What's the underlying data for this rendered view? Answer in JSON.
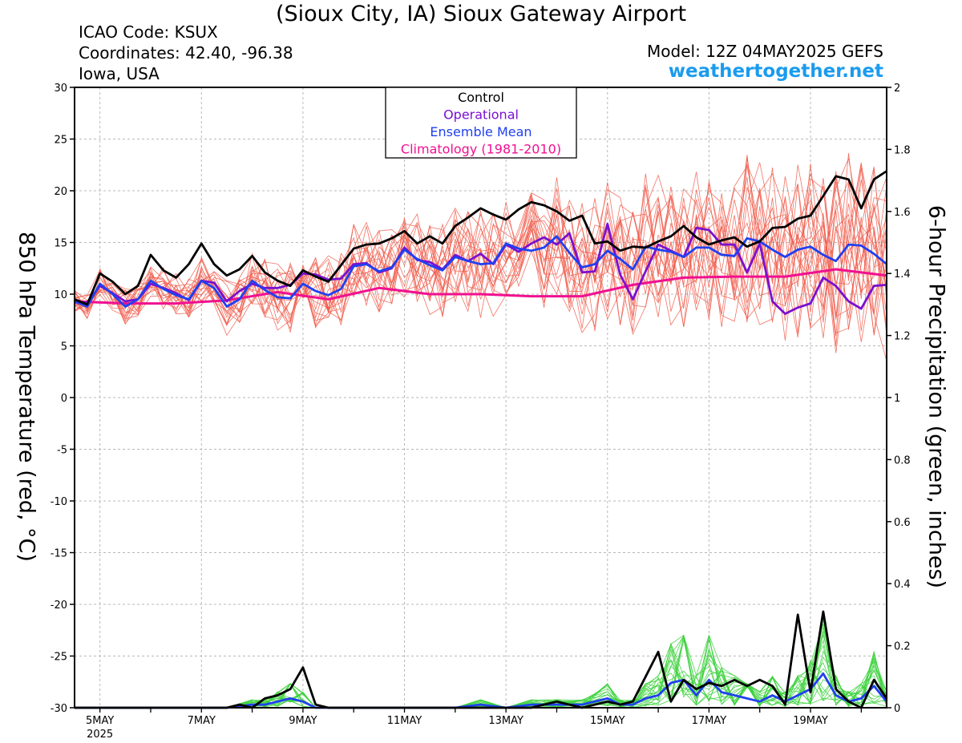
{
  "header": {
    "title": "(Sioux City, IA) Sioux Gateway Airport",
    "icao": "ICAO Code: KSUX",
    "coordinates": "Coordinates: 42.40, -96.38",
    "region": "Iowa, USA",
    "model": "Model: 12Z 04MAY2025 GEFS",
    "site": "weathertogether.net"
  },
  "colors": {
    "control": "#000000",
    "operational": "#7a10d0",
    "ensemble_mean": "#2040f0",
    "climatology": "#f01090",
    "members_temp": "#f05a4a",
    "members_precip": "#3cd23c",
    "site": "#1a9bef"
  },
  "chart_data": {
    "type": "line",
    "ylabel": "850 hPa Temperature (red, °C)",
    "y2label": "6-hour Precipitation (green, inches)",
    "ylim": [
      -30,
      30
    ],
    "y2lim": [
      0,
      2
    ],
    "yticks": [
      "30",
      "25",
      "20",
      "15",
      "10",
      "5",
      "0",
      "-5",
      "-10",
      "-15",
      "-20",
      "-25",
      "-30"
    ],
    "y2ticks": [
      "2",
      "1.8",
      "1.6",
      "1.4",
      "1.2",
      "1",
      "0.8",
      "0.6",
      "0.4",
      "0.2",
      "0"
    ],
    "xticks": [
      {
        "label": "5MAY",
        "sub": "2025",
        "x": 0.5
      },
      {
        "label": "7MAY",
        "sub": "",
        "x": 2.5
      },
      {
        "label": "9MAY",
        "sub": "",
        "x": 4.5
      },
      {
        "label": "11MAY",
        "sub": "",
        "x": 6.5
      },
      {
        "label": "13MAY",
        "sub": "",
        "x": 8.5
      },
      {
        "label": "15MAY",
        "sub": "",
        "x": 10.5
      },
      {
        "label": "17MAY",
        "sub": "",
        "x": 12.5
      },
      {
        "label": "19MAY",
        "sub": "",
        "x": 14.5
      }
    ],
    "x_unit": "days since 12Z 04MAY2025",
    "x_range": [
      0,
      16
    ],
    "grid": true,
    "legend": {
      "placement": "top-center",
      "entries": [
        "Control",
        "Operational",
        "Ensemble Mean",
        "Climatology (1981-2010)"
      ]
    },
    "series": [
      {
        "name": "Control",
        "axis": "temp",
        "x": [
          0,
          0.25,
          0.5,
          0.75,
          1,
          1.25,
          1.5,
          1.75,
          2,
          2.25,
          2.5,
          2.75,
          3,
          3.25,
          3.5,
          3.75,
          4,
          4.25,
          4.5,
          4.75,
          5,
          5.25,
          5.5,
          5.75,
          6,
          6.25,
          6.5,
          6.75,
          7,
          7.25,
          7.5,
          7.75,
          8,
          8.25,
          8.5,
          8.75,
          9,
          9.25,
          9.5,
          9.75,
          10,
          10.25,
          10.5,
          10.75,
          11,
          11.25,
          11.5,
          11.75,
          12,
          12.25,
          12.5,
          12.75,
          13,
          13.25,
          13.5,
          13.75,
          14,
          14.25,
          14.5,
          14.75,
          15,
          15.25,
          15.5,
          15.75,
          16
        ],
        "values": [
          9.5,
          9,
          12,
          11.2,
          10,
          10.8,
          13.8,
          12.3,
          11.6,
          12.9,
          14.9,
          12.9,
          11.8,
          12.4,
          13.7,
          12.1,
          11.3,
          10.8,
          12.3,
          11.7,
          11.2,
          12.8,
          14.4,
          14.8,
          14.9,
          15.4,
          16.1,
          14.9,
          15.6,
          14.9,
          16.6,
          17.4,
          18.3,
          17.7,
          17.2,
          18.2,
          18.9,
          18.6,
          18,
          17.1,
          17.6,
          14.9,
          15.1,
          14.2,
          14.6,
          14.5,
          15.1,
          15.6,
          16.6,
          15.5,
          14.8,
          15.2,
          15.5,
          14.6,
          15.1,
          16.4,
          16.5,
          17.3,
          17.6,
          19.5,
          21.4,
          21.1,
          18.3,
          21.1,
          21.9
        ]
      },
      {
        "name": "Operational",
        "axis": "temp",
        "x": [
          0,
          0.25,
          0.5,
          0.75,
          1,
          1.25,
          1.5,
          1.75,
          2,
          2.25,
          2.5,
          2.75,
          3,
          3.25,
          3.5,
          3.75,
          4,
          4.25,
          4.5,
          4.75,
          5,
          5.25,
          5.5,
          5.75,
          6,
          6.25,
          6.5,
          6.75,
          7,
          7.25,
          7.5,
          7.75,
          8,
          8.25,
          8.5,
          8.75,
          9,
          9.25,
          9.5,
          9.75,
          10,
          10.25,
          10.5,
          10.75,
          11,
          11.25,
          11.5,
          11.75,
          12,
          12.25,
          12.5,
          12.75,
          13,
          13.25,
          13.5,
          13.75,
          14,
          14.25,
          14.5,
          14.75,
          15,
          15.25,
          15.5,
          15.75,
          16
        ],
        "values": [
          9.2,
          9.2,
          10.8,
          10.1,
          9.3,
          9.5,
          11,
          10.6,
          10.1,
          9.4,
          11.3,
          11.1,
          9.3,
          10.3,
          11,
          10.6,
          10.6,
          10.9,
          12,
          11.9,
          11.4,
          11.5,
          12.9,
          13,
          12.1,
          12.5,
          14.5,
          13.3,
          13.1,
          12.4,
          13.8,
          13.2,
          13.9,
          12.9,
          14.8,
          14.1,
          14.9,
          15.5,
          14.8,
          15.9,
          12.1,
          12.2,
          16.8,
          11.9,
          9.5,
          12.2,
          14.8,
          14.2,
          13.6,
          16.4,
          16.2,
          14.8,
          14.8,
          12.1,
          14.9,
          9.3,
          8.1,
          8.7,
          9.1,
          11.6,
          10.8,
          9.3,
          8.6,
          10.8,
          10.9
        ]
      },
      {
        "name": "Ensemble Mean",
        "axis": "temp",
        "x": [
          0,
          0.25,
          0.5,
          0.75,
          1,
          1.25,
          1.5,
          1.75,
          2,
          2.25,
          2.5,
          2.75,
          3,
          3.25,
          3.5,
          3.75,
          4,
          4.25,
          4.5,
          4.75,
          5,
          5.25,
          5.5,
          5.75,
          6,
          6.25,
          6.5,
          6.75,
          7,
          7.25,
          7.5,
          7.75,
          8,
          8.25,
          8.5,
          8.75,
          9,
          9.25,
          9.5,
          9.75,
          10,
          10.25,
          10.5,
          10.75,
          11,
          11.25,
          11.5,
          11.75,
          12,
          12.25,
          12.5,
          12.75,
          13,
          13.25,
          13.5,
          13.75,
          14,
          14.25,
          14.5,
          14.75,
          15,
          15.25,
          15.5,
          15.75,
          16
        ],
        "values": [
          9.3,
          8.8,
          11,
          10,
          8.8,
          9.5,
          11.3,
          10.5,
          9.9,
          9.5,
          11.3,
          10.6,
          8.8,
          9.5,
          11.3,
          10.4,
          9.7,
          9.6,
          11,
          10.3,
          9.9,
          10.5,
          12.7,
          12.9,
          12.2,
          12.6,
          14.3,
          13.4,
          12.8,
          12.3,
          13.6,
          13.2,
          12.9,
          13,
          14.9,
          14.4,
          14.2,
          14.5,
          15.6,
          14,
          12.6,
          12.9,
          14.2,
          13.4,
          12.4,
          14.6,
          14.3,
          14.1,
          13.6,
          14.5,
          14.5,
          13.8,
          13.7,
          15.4,
          15.1,
          14.3,
          13.6,
          14.3,
          14.6,
          13.8,
          13.2,
          14.8,
          14.7,
          13.9,
          12.9
        ]
      },
      {
        "name": "Climatology (1981-2010)",
        "axis": "temp",
        "x": [
          0,
          1,
          2,
          3,
          4,
          5,
          6,
          7,
          8,
          9,
          10,
          11,
          12,
          13,
          14,
          15,
          16
        ],
        "values": [
          9.3,
          9.1,
          9.1,
          9.4,
          10.2,
          9.5,
          10.6,
          10,
          10,
          9.8,
          9.8,
          10.9,
          11.6,
          11.7,
          11.7,
          12.4,
          11.8
        ]
      },
      {
        "name": "Control",
        "axis": "precip",
        "x": [
          0,
          0.5,
          1,
          1.5,
          2,
          2.5,
          3,
          3.25,
          3.5,
          3.75,
          4,
          4.25,
          4.5,
          4.75,
          5,
          5.5,
          6,
          6.5,
          7,
          7.5,
          8,
          8.5,
          9,
          9.5,
          10,
          10.5,
          10.75,
          11,
          11.25,
          11.5,
          11.75,
          12,
          12.25,
          12.5,
          12.75,
          13,
          13.25,
          13.5,
          13.75,
          14,
          14.25,
          14.5,
          14.75,
          15,
          15.25,
          15.5,
          15.75,
          16
        ],
        "values": [
          0,
          0,
          0,
          0,
          0,
          0,
          0,
          0.01,
          0,
          0.03,
          0.04,
          0.06,
          0.13,
          0.01,
          0,
          0,
          0,
          0,
          0,
          0,
          0,
          0,
          0,
          0.02,
          0,
          0.02,
          0.01,
          0.02,
          0.1,
          0.18,
          0.02,
          0.09,
          0.06,
          0.08,
          0.07,
          0.09,
          0.07,
          0.09,
          0.07,
          0.01,
          0.3,
          0.05,
          0.31,
          0.06,
          0.02,
          0,
          0.09,
          0.03
        ]
      },
      {
        "name": "Ensemble Mean",
        "axis": "precip",
        "x": [
          0,
          0.5,
          1,
          1.5,
          2,
          2.5,
          3,
          3.5,
          3.75,
          4,
          4.25,
          4.5,
          4.75,
          5,
          5.5,
          6,
          6.5,
          7,
          7.5,
          8,
          8.5,
          9,
          9.5,
          10,
          10.5,
          10.75,
          11,
          11.25,
          11.5,
          11.75,
          12,
          12.25,
          12.5,
          12.75,
          13,
          13.25,
          13.5,
          13.75,
          14,
          14.25,
          14.5,
          14.75,
          15,
          15.25,
          15.5,
          15.75,
          16
        ],
        "values": [
          0,
          0,
          0,
          0,
          0,
          0,
          0,
          0.01,
          0.01,
          0.02,
          0.03,
          0.02,
          0,
          0,
          0,
          0,
          0,
          0,
          0,
          0.01,
          0,
          0.01,
          0.01,
          0.01,
          0.03,
          0.01,
          0.01,
          0.03,
          0.04,
          0.08,
          0.09,
          0.04,
          0.09,
          0.05,
          0.04,
          0.03,
          0.02,
          0.04,
          0.02,
          0.04,
          0.06,
          0.11,
          0.04,
          0.02,
          0.03,
          0.07,
          0.02
        ]
      }
    ]
  }
}
